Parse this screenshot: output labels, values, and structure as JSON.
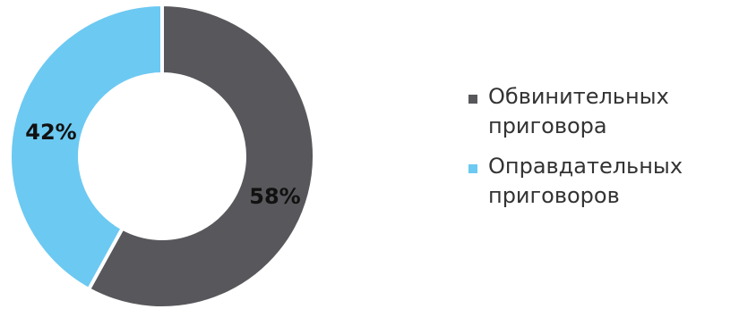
{
  "colors": {
    "dark": "#58585c",
    "light": "#6cc9f2",
    "separator": "#ffffff"
  },
  "legend": {
    "items": [
      {
        "label": "Обвинительных приговора",
        "color": "#58585c"
      },
      {
        "label": "Оправдательных приговоров",
        "color": "#6cc9f2"
      }
    ]
  },
  "chart_data": {
    "type": "pie",
    "variant": "donut",
    "title": "",
    "legend_position": "right",
    "series": [
      {
        "name": "Обвинительных приговора",
        "value": 58,
        "label": "58%",
        "color": "#58585c"
      },
      {
        "name": "Оправдательных приговоров",
        "value": 42,
        "label": "42%",
        "color": "#6cc9f2"
      }
    ]
  }
}
